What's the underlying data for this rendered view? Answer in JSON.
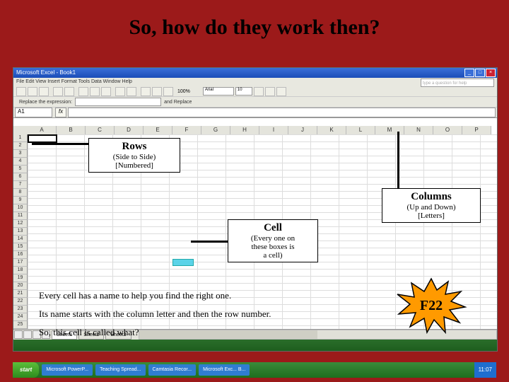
{
  "slide": {
    "title": "So, how do they work then?",
    "bg_color": "#9c1a1a"
  },
  "excel": {
    "titlebar": "Microsoft Excel - Book1",
    "menubar": "File  Edit  View  Insert  Format  Tools  Data  Window  Help",
    "question_box": "type a question for help",
    "font_name": "Arial",
    "font_size": "10",
    "findbar_label": "Replace the expression:",
    "findbar_label2": "and Replace",
    "namebox": "A1",
    "columns": [
      "A",
      "B",
      "C",
      "D",
      "E",
      "F",
      "G",
      "H",
      "I",
      "J",
      "K",
      "L",
      "M",
      "N",
      "O",
      "P"
    ],
    "row_count": 27,
    "tabs": [
      "Sheet1",
      "Sheet2",
      "Sheet3"
    ]
  },
  "taskbar": {
    "start": "start",
    "items": [
      "Microsoft PowerP...",
      "Teaching Spread...",
      "Camtasia Recor...",
      "Microsoft Exc... B..."
    ],
    "clock": "11:07"
  },
  "callouts": {
    "rows": {
      "h": "Rows",
      "l1": "(Side to Side)",
      "l2": "[Numbered]"
    },
    "columns": {
      "h": "Columns",
      "l1": "(Up and Down)",
      "l2": "[Letters]"
    },
    "cell": {
      "h": "Cell",
      "l1": "(Every one on",
      "l2": "these boxes is",
      "l3": "a cell)"
    }
  },
  "body": {
    "l1": "Every cell has a name to help you find the right one.",
    "l2": "Its name starts with the column letter and then the row number.",
    "l3": "So, this cell is called what?"
  },
  "burst": {
    "label": "F22",
    "fill": "#ff9a00",
    "stroke": "#000000"
  }
}
